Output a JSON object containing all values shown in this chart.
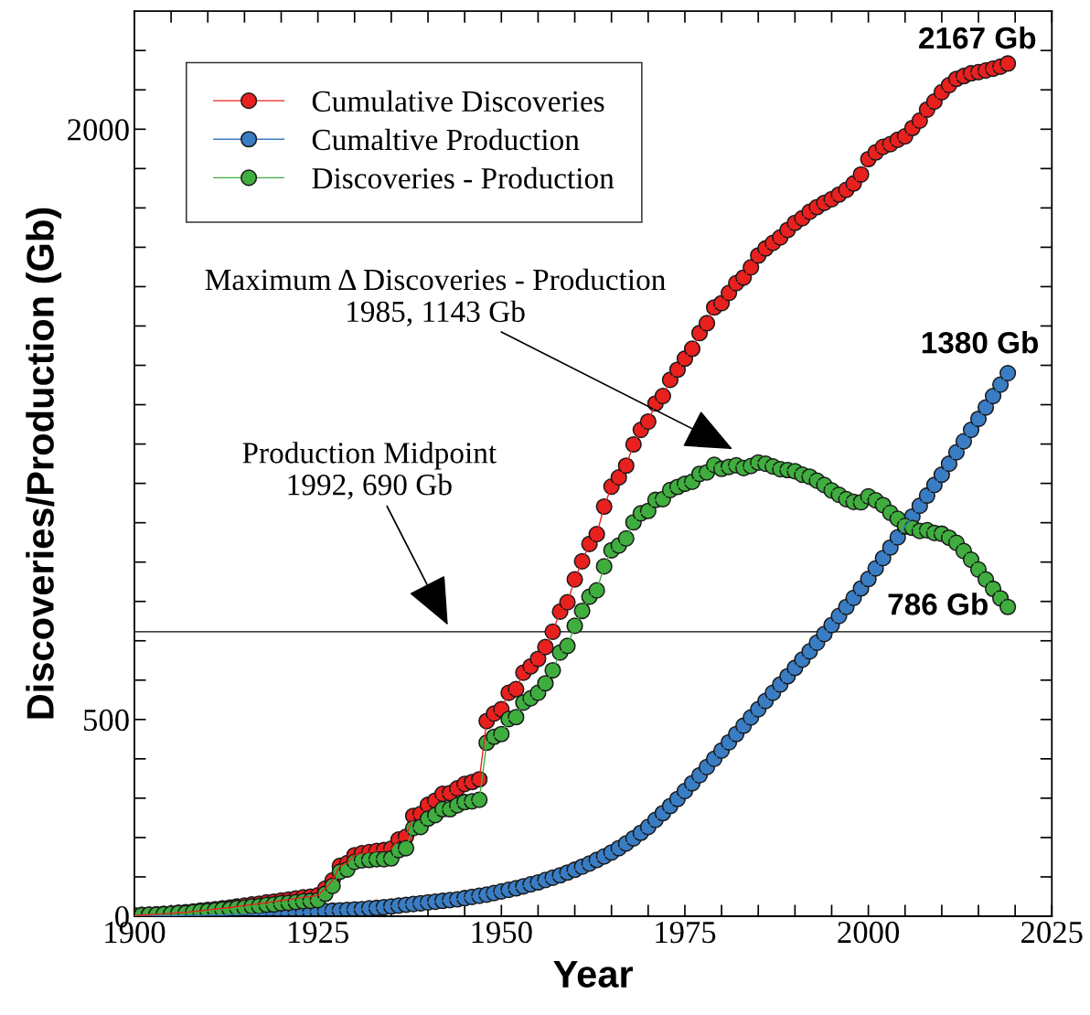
{
  "chart_data": {
    "type": "line",
    "xlabel": "Year",
    "ylabel": "Discoveries/Production (Gb)",
    "x": [
      1900,
      1901,
      1902,
      1903,
      1904,
      1905,
      1906,
      1907,
      1908,
      1909,
      1910,
      1911,
      1912,
      1913,
      1914,
      1915,
      1916,
      1917,
      1918,
      1919,
      1920,
      1921,
      1922,
      1923,
      1924,
      1925,
      1926,
      1927,
      1928,
      1929,
      1930,
      1931,
      1932,
      1933,
      1934,
      1935,
      1936,
      1937,
      1938,
      1939,
      1940,
      1941,
      1942,
      1943,
      1944,
      1945,
      1946,
      1947,
      1948,
      1949,
      1950,
      1951,
      1952,
      1953,
      1954,
      1955,
      1956,
      1957,
      1958,
      1959,
      1960,
      1961,
      1962,
      1963,
      1964,
      1965,
      1966,
      1967,
      1968,
      1969,
      1970,
      1971,
      1972,
      1973,
      1974,
      1975,
      1976,
      1977,
      1978,
      1979,
      1980,
      1981,
      1982,
      1983,
      1984,
      1985,
      1986,
      1987,
      1988,
      1989,
      1990,
      1991,
      1992,
      1993,
      1994,
      1995,
      1996,
      1997,
      1998,
      1999,
      2000,
      2001,
      2002,
      2003,
      2004,
      2005,
      2006,
      2007,
      2008,
      2009,
      2010,
      2011,
      2012,
      2013,
      2014,
      2015,
      2016,
      2017,
      2018,
      2019
    ],
    "series": [
      {
        "name": "Cumulative Discoveries",
        "color": "#e8211f",
        "values": [
          2,
          3,
          4,
          5,
          6,
          7,
          9,
          10,
          12,
          14,
          16,
          18,
          20,
          22,
          25,
          27,
          30,
          32,
          35,
          37,
          40,
          42,
          45,
          48,
          50,
          53,
          70,
          91,
          128,
          135,
          155,
          160,
          163,
          166,
          168,
          172,
          195,
          202,
          255,
          260,
          283,
          294,
          311,
          313,
          325,
          336,
          341,
          348,
          496,
          515,
          526,
          568,
          577,
          619,
          635,
          654,
          684,
          723,
          774,
          798,
          856,
          902,
          946,
          971,
          1041,
          1092,
          1115,
          1145,
          1199,
          1236,
          1257,
          1303,
          1322,
          1363,
          1389,
          1417,
          1442,
          1482,
          1507,
          1547,
          1558,
          1584,
          1609,
          1623,
          1649,
          1679,
          1697,
          1711,
          1725,
          1744,
          1762,
          1774,
          1790,
          1802,
          1813,
          1822,
          1834,
          1846,
          1862,
          1885,
          1924,
          1941,
          1955,
          1962,
          1973,
          1982,
          2003,
          2022,
          2050,
          2070,
          2094,
          2112,
          2128,
          2135,
          2142,
          2145,
          2149,
          2154,
          2159,
          2167
        ],
        "value_labels": [
          null,
          null,
          null,
          null,
          null,
          null,
          null,
          null,
          null,
          null,
          null,
          null,
          null,
          null,
          null,
          null,
          null,
          null,
          null,
          null,
          null,
          null,
          null,
          null,
          null,
          null,
          null,
          null,
          null,
          null,
          null,
          null,
          null,
          null,
          null,
          null,
          null,
          null,
          null,
          null,
          null,
          null,
          null,
          null,
          null,
          null,
          null,
          null,
          null,
          null,
          null,
          null,
          null,
          null,
          null,
          null,
          null,
          null,
          null,
          null,
          null,
          null,
          null,
          null,
          null,
          null,
          null,
          null,
          null,
          null,
          null,
          null,
          null,
          null,
          null,
          null,
          null,
          null,
          null,
          null,
          null,
          null,
          null,
          null,
          null,
          null,
          null,
          null,
          null,
          null,
          null,
          null,
          null,
          null,
          null,
          null,
          null,
          null,
          null,
          null,
          null,
          null,
          null,
          null,
          null,
          null,
          null,
          null,
          null,
          null,
          null,
          null,
          null,
          null,
          null,
          null,
          null,
          null,
          null,
          "2167 Gb"
        ]
      },
      {
        "name": "Cumaltive Production",
        "color": "#3a7dc4",
        "values": [
          0,
          0,
          0,
          1,
          1,
          1,
          1,
          2,
          2,
          2,
          3,
          3,
          3,
          4,
          4,
          5,
          5,
          6,
          6,
          7,
          7,
          8,
          9,
          10,
          11,
          12,
          13,
          14,
          15,
          16,
          17,
          18,
          20,
          21,
          23,
          25,
          27,
          29,
          31,
          33,
          35,
          37,
          39,
          41,
          43,
          46,
          49,
          52,
          55,
          59,
          63,
          67,
          71,
          76,
          81,
          86,
          92,
          98,
          104,
          111,
          118,
          126,
          134,
          143,
          152,
          162,
          173,
          185,
          198,
          212,
          227,
          245,
          262,
          280,
          298,
          318,
          338,
          358,
          379,
          400,
          421,
          442,
          463,
          484,
          505,
          526,
          547,
          568,
          589,
          610,
          631,
          652,
          673,
          695,
          717,
          740,
          763,
          786,
          809,
          833,
          857,
          884,
          910,
          937,
          963,
          990,
          1016,
          1043,
          1069,
          1096,
          1122,
          1150,
          1179,
          1207,
          1236,
          1264,
          1293,
          1322,
          1351,
          1380
        ],
        "value_labels": [
          null,
          null,
          null,
          null,
          null,
          null,
          null,
          null,
          null,
          null,
          null,
          null,
          null,
          null,
          null,
          null,
          null,
          null,
          null,
          null,
          null,
          null,
          null,
          null,
          null,
          null,
          null,
          null,
          null,
          null,
          null,
          null,
          null,
          null,
          null,
          null,
          null,
          null,
          null,
          null,
          null,
          null,
          null,
          null,
          null,
          null,
          null,
          null,
          null,
          null,
          null,
          null,
          null,
          null,
          null,
          null,
          null,
          null,
          null,
          null,
          null,
          null,
          null,
          null,
          null,
          null,
          null,
          null,
          null,
          null,
          null,
          null,
          null,
          null,
          null,
          null,
          null,
          null,
          null,
          null,
          null,
          null,
          null,
          null,
          null,
          null,
          null,
          null,
          null,
          null,
          null,
          null,
          null,
          null,
          null,
          null,
          null,
          null,
          null,
          null,
          null,
          null,
          null,
          null,
          null,
          null,
          null,
          null,
          null,
          null,
          null,
          null,
          null,
          null,
          null,
          null,
          null,
          null,
          null,
          "1380 Gb"
        ]
      },
      {
        "name": "Discoveries - Production",
        "color": "#3fae3f",
        "values": [
          2,
          3,
          4,
          4,
          5,
          6,
          8,
          8,
          10,
          12,
          13,
          15,
          17,
          18,
          21,
          22,
          25,
          26,
          29,
          30,
          33,
          34,
          36,
          38,
          39,
          41,
          57,
          77,
          113,
          119,
          138,
          142,
          143,
          145,
          145,
          147,
          168,
          173,
          224,
          227,
          248,
          257,
          272,
          272,
          282,
          290,
          292,
          296,
          441,
          456,
          463,
          501,
          506,
          543,
          554,
          568,
          592,
          625,
          670,
          687,
          738,
          776,
          812,
          828,
          889,
          930,
          942,
          960,
          1001,
          1024,
          1030,
          1058,
          1060,
          1083,
          1091,
          1099,
          1104,
          1124,
          1128,
          1147,
          1137,
          1142,
          1146,
          1139,
          1144,
          1153,
          1150,
          1143,
          1136,
          1134,
          1131,
          1122,
          1117,
          1107,
          1096,
          1082,
          1071,
          1060,
          1053,
          1052,
          1067,
          1057,
          1045,
          1025,
          1010,
          992,
          987,
          979,
          981,
          974,
          972,
          962,
          949,
          928,
          906,
          881,
          856,
          832,
          808,
          786
        ],
        "value_labels": [
          null,
          null,
          null,
          null,
          null,
          null,
          null,
          null,
          null,
          null,
          null,
          null,
          null,
          null,
          null,
          null,
          null,
          null,
          null,
          null,
          null,
          null,
          null,
          null,
          null,
          null,
          null,
          null,
          null,
          null,
          null,
          null,
          null,
          null,
          null,
          null,
          null,
          null,
          null,
          null,
          null,
          null,
          null,
          null,
          null,
          null,
          null,
          null,
          null,
          null,
          null,
          null,
          null,
          null,
          null,
          null,
          null,
          null,
          null,
          null,
          null,
          null,
          null,
          null,
          null,
          null,
          null,
          null,
          null,
          null,
          null,
          null,
          null,
          null,
          null,
          null,
          null,
          null,
          null,
          null,
          null,
          null,
          null,
          null,
          null,
          null,
          null,
          null,
          null,
          null,
          null,
          null,
          null,
          null,
          null,
          null,
          null,
          null,
          null,
          null,
          null,
          null,
          null,
          null,
          null,
          null,
          null,
          null,
          null,
          null,
          null,
          null,
          null,
          null,
          null,
          null,
          null,
          null,
          null,
          "786 Gb"
        ]
      }
    ],
    "xlim": [
      1900,
      2025
    ],
    "xticks": [
      1900,
      {
        "value": 1905,
        "label": null
      },
      {
        "value": 1910,
        "label": null
      },
      {
        "value": 1915,
        "label": null
      },
      {
        "value": 1920,
        "label": null
      },
      1925,
      {
        "value": 1930,
        "label": null
      },
      {
        "value": 1935,
        "label": null
      },
      {
        "value": 1940,
        "label": null
      },
      {
        "value": 1945,
        "label": null
      },
      1950,
      {
        "value": 1955,
        "label": null
      },
      {
        "value": 1960,
        "label": null
      },
      {
        "value": 1965,
        "label": null
      },
      {
        "value": 1970,
        "label": null
      },
      1975,
      {
        "value": 1980,
        "label": null
      },
      {
        "value": 1985,
        "label": null
      },
      {
        "value": 1990,
        "label": null
      },
      {
        "value": 1995,
        "label": null
      },
      2000,
      {
        "value": 2005,
        "label": null
      },
      {
        "value": 2010,
        "label": null
      },
      {
        "value": 2015,
        "label": null
      },
      {
        "value": 2020,
        "label": null
      },
      2025
    ],
    "ylim": [
      0,
      2300
    ],
    "yticks": [
      0,
      {
        "value": 100,
        "label": null
      },
      {
        "value": 200,
        "label": null
      },
      {
        "value": 300,
        "label": null
      },
      {
        "value": 400,
        "label": null
      },
      500,
      {
        "value": 600,
        "label": null
      },
      {
        "value": 700,
        "label": null
      },
      {
        "value": 800,
        "label": null
      },
      {
        "value": 900,
        "label": null
      },
      {
        "value": 1000,
        "label": null
      },
      {
        "value": 1100,
        "label": null
      },
      {
        "value": 1200,
        "label": null
      },
      {
        "value": 1300,
        "label": null
      },
      {
        "value": 1400,
        "label": null
      },
      {
        "value": 1500,
        "label": null
      },
      {
        "value": 1600,
        "label": null
      },
      {
        "value": 1700,
        "label": null
      },
      {
        "value": 1800,
        "label": null
      },
      {
        "value": 1900,
        "label": null
      },
      2000,
      {
        "value": 2100,
        "label": null
      },
      {
        "value": 2200,
        "label": null
      }
    ],
    "ref_lines": [
      {
        "axis": "y",
        "value": 723,
        "color": "#000000"
      }
    ],
    "annotations": [
      "Maximum Δ Discoveries - Production\n1985, 1143 Gb",
      "Production Midpoint\n1992, 690 Gb"
    ],
    "marker": "circle",
    "line_style": "solid",
    "grid": false,
    "legend": "top left"
  }
}
